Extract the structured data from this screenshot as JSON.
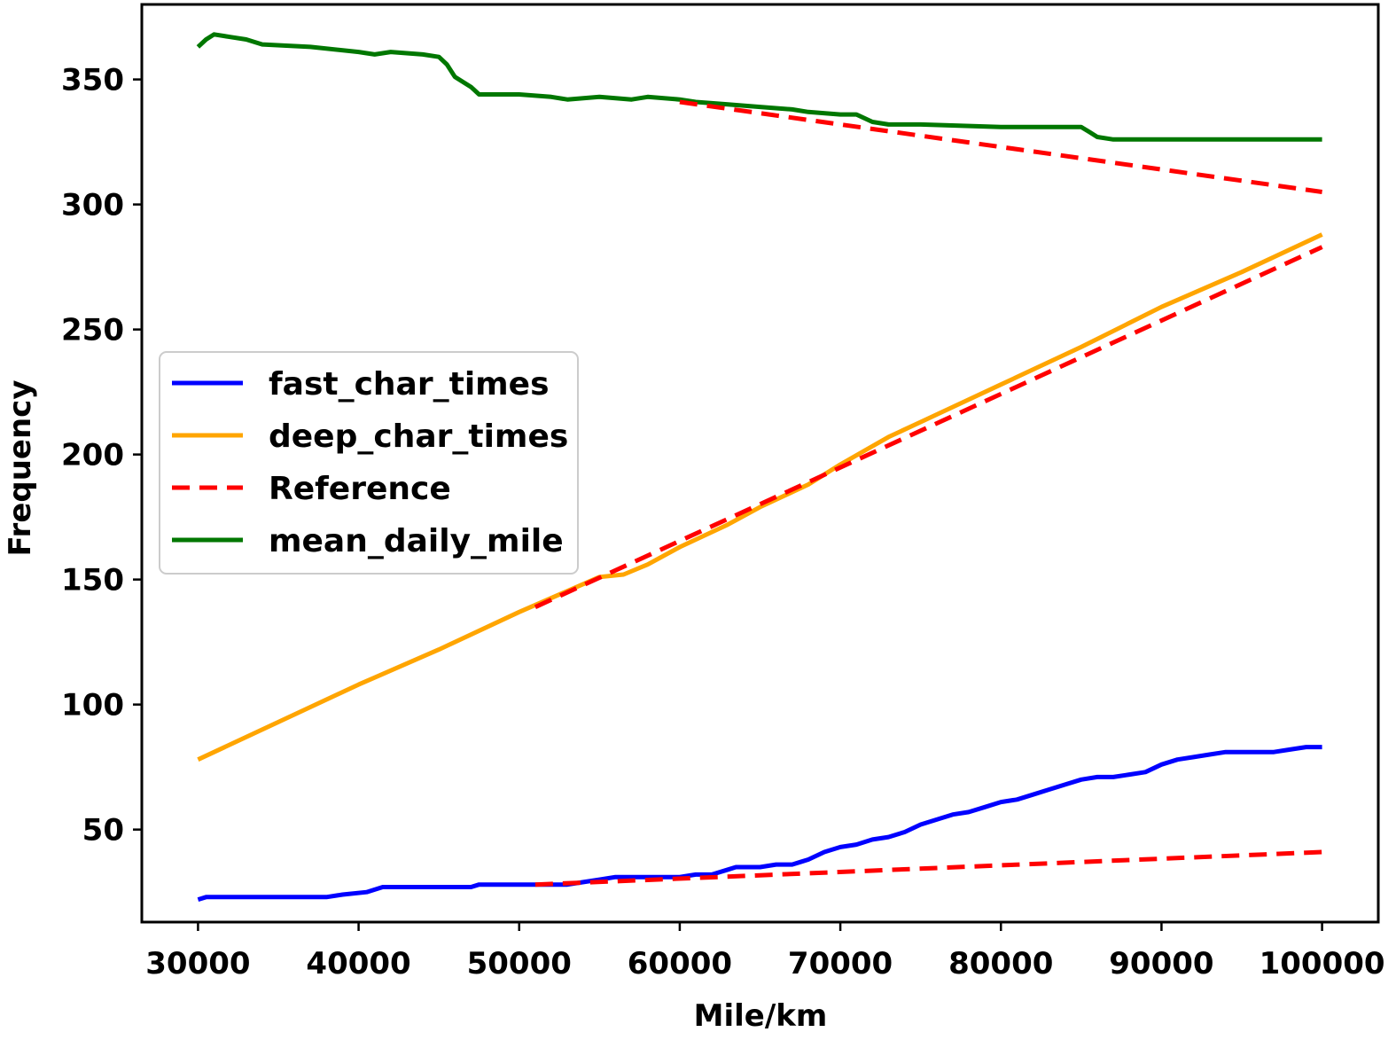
{
  "chart_data": {
    "type": "line",
    "title": "",
    "xlabel": "Mile/km",
    "ylabel": "Frequency",
    "xlim": [
      26500,
      103500
    ],
    "ylim": [
      13,
      380
    ],
    "xticks": [
      30000,
      40000,
      50000,
      60000,
      70000,
      80000,
      90000,
      100000
    ],
    "yticks": [
      50,
      100,
      150,
      200,
      250,
      300,
      350
    ],
    "grid": false,
    "legend": {
      "position": "center-left"
    },
    "series": [
      {
        "name": "fast_char_times",
        "color": "#0000ff",
        "style": "solid",
        "points": [
          [
            30000,
            22
          ],
          [
            30500,
            23
          ],
          [
            38000,
            23
          ],
          [
            39000,
            24
          ],
          [
            40500,
            25
          ],
          [
            41500,
            27
          ],
          [
            47000,
            27
          ],
          [
            47500,
            28
          ],
          [
            53000,
            28
          ],
          [
            54000,
            29
          ],
          [
            55000,
            30
          ],
          [
            56000,
            31
          ],
          [
            59000,
            31
          ],
          [
            60000,
            31
          ],
          [
            61000,
            32
          ],
          [
            62000,
            32
          ],
          [
            63000,
            34
          ],
          [
            63500,
            35
          ],
          [
            65000,
            35
          ],
          [
            66000,
            36
          ],
          [
            67000,
            36
          ],
          [
            67500,
            37
          ],
          [
            68000,
            38
          ],
          [
            69000,
            41
          ],
          [
            70000,
            43
          ],
          [
            71000,
            44
          ],
          [
            72000,
            46
          ],
          [
            73000,
            47
          ],
          [
            74000,
            49
          ],
          [
            75000,
            52
          ],
          [
            76000,
            54
          ],
          [
            77000,
            56
          ],
          [
            78000,
            57
          ],
          [
            79000,
            59
          ],
          [
            80000,
            61
          ],
          [
            81000,
            62
          ],
          [
            82000,
            64
          ],
          [
            83000,
            66
          ],
          [
            84000,
            68
          ],
          [
            85000,
            70
          ],
          [
            86000,
            71
          ],
          [
            87000,
            71
          ],
          [
            88000,
            72
          ],
          [
            89000,
            73
          ],
          [
            90000,
            76
          ],
          [
            91000,
            78
          ],
          [
            92000,
            79
          ],
          [
            93000,
            80
          ],
          [
            94000,
            81
          ],
          [
            96000,
            81
          ],
          [
            97000,
            81
          ],
          [
            98000,
            82
          ],
          [
            99000,
            83
          ],
          [
            100000,
            83
          ]
        ]
      },
      {
        "name": "deep_char_times",
        "color": "#ffa500",
        "style": "solid",
        "points": [
          [
            30000,
            78
          ],
          [
            35000,
            93
          ],
          [
            40000,
            108
          ],
          [
            45000,
            122
          ],
          [
            50000,
            137
          ],
          [
            55000,
            151
          ],
          [
            56500,
            152
          ],
          [
            58000,
            156
          ],
          [
            60000,
            163
          ],
          [
            63000,
            172
          ],
          [
            65000,
            179
          ],
          [
            68000,
            188
          ],
          [
            70000,
            196
          ],
          [
            73000,
            207
          ],
          [
            75000,
            213
          ],
          [
            78000,
            222
          ],
          [
            80000,
            228
          ],
          [
            85000,
            243
          ],
          [
            90000,
            259
          ],
          [
            95000,
            273
          ],
          [
            100000,
            288
          ]
        ]
      },
      {
        "name": "Reference",
        "color": "#ff0000",
        "style": "dashed",
        "segments": [
          [
            [
              60000,
              341
            ],
            [
              100000,
              305
            ]
          ],
          [
            [
              51000,
              139
            ],
            [
              100000,
              283
            ]
          ],
          [
            [
              51000,
              28
            ],
            [
              100000,
              41
            ]
          ]
        ]
      },
      {
        "name": "mean_daily_mile",
        "color": "#007700",
        "style": "solid",
        "points": [
          [
            30000,
            363
          ],
          [
            30500,
            366
          ],
          [
            31000,
            368
          ],
          [
            32000,
            367
          ],
          [
            33000,
            366
          ],
          [
            34000,
            364
          ],
          [
            37000,
            363
          ],
          [
            40000,
            361
          ],
          [
            41000,
            360
          ],
          [
            42000,
            361
          ],
          [
            44000,
            360
          ],
          [
            45000,
            359
          ],
          [
            45500,
            356
          ],
          [
            46000,
            351
          ],
          [
            47000,
            347
          ],
          [
            47500,
            344
          ],
          [
            50000,
            344
          ],
          [
            52000,
            343
          ],
          [
            53000,
            342
          ],
          [
            55000,
            343
          ],
          [
            57000,
            342
          ],
          [
            58000,
            343
          ],
          [
            60000,
            342
          ],
          [
            61000,
            341
          ],
          [
            63000,
            340
          ],
          [
            65000,
            339
          ],
          [
            67000,
            338
          ],
          [
            68000,
            337
          ],
          [
            70000,
            336
          ],
          [
            71000,
            336
          ],
          [
            72000,
            333
          ],
          [
            73000,
            332
          ],
          [
            75000,
            332
          ],
          [
            80000,
            331
          ],
          [
            83000,
            331
          ],
          [
            85000,
            331
          ],
          [
            85500,
            329
          ],
          [
            86000,
            327
          ],
          [
            87000,
            326
          ],
          [
            90000,
            326
          ],
          [
            93000,
            326
          ],
          [
            95000,
            326
          ],
          [
            97000,
            326
          ],
          [
            100000,
            326
          ]
        ]
      }
    ]
  }
}
